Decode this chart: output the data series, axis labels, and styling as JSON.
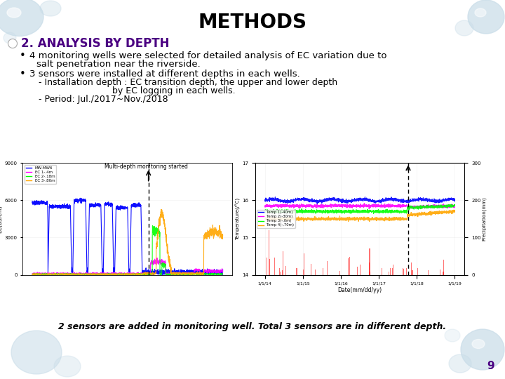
{
  "background_color": "#ffffff",
  "title": "METHODS",
  "title_fontsize": 20,
  "title_color": "#000000",
  "section_title": "2. ANALYSIS BY DEPTH",
  "section_title_color": "#4B0082",
  "section_title_fontsize": 12,
  "body_fontsize": 9.5,
  "sub_fontsize": 9,
  "note_fontsize": 9,
  "bottom_text": "2 sensors are added in monitoring well. Total 3 sensors are in different depth.",
  "page_number": "9",
  "page_number_color": "#4B0082",
  "bubble_color": "#c8dce8"
}
